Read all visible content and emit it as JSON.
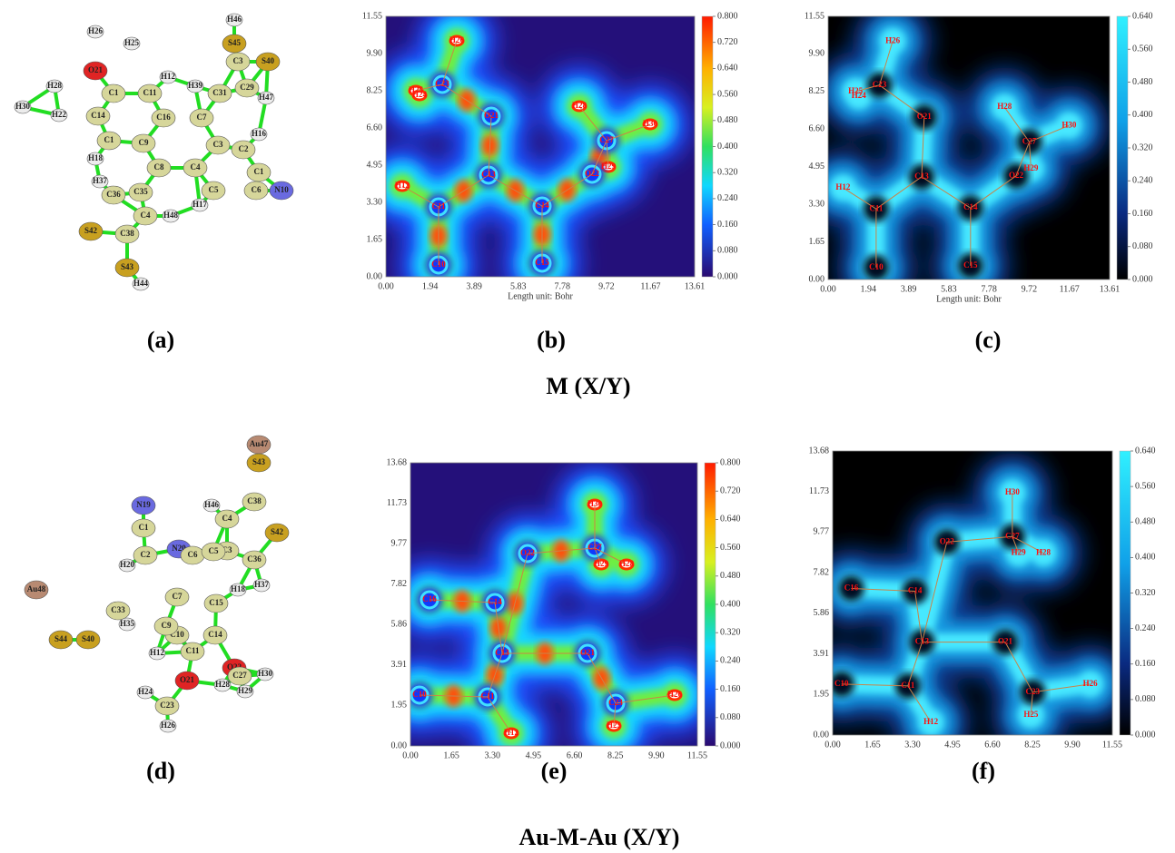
{
  "panels": {
    "a": {
      "caption": "(a)",
      "atoms": [
        "H26",
        "H25",
        "O21",
        "C1",
        "C11",
        "H12",
        "H28",
        "H30",
        "H22",
        "C14",
        "C16",
        "C7",
        "H46",
        "S45",
        "C3",
        "S40",
        "H39",
        "C31",
        "C29",
        "H47",
        "H16",
        "C2",
        "C1",
        "C6",
        "N10",
        "C9",
        "C1",
        "H18",
        "C8",
        "C4",
        "C3",
        "C5",
        "H17",
        "H37",
        "C36",
        "C35",
        "C4",
        "H48",
        "S42",
        "C38",
        "S43",
        "H44"
      ]
    },
    "b": {
      "caption": "(b)",
      "x_axis_label": "Length unit: Bohr",
      "x_ticks": [
        "0.00",
        "1.94",
        "3.89",
        "5.83",
        "7.78",
        "9.72",
        "11.67",
        "13.61"
      ],
      "y_ticks": [
        "0.00",
        "1.65",
        "3.30",
        "4.95",
        "6.60",
        "8.25",
        "9.90",
        "11.55"
      ],
      "colorbar_ticks": [
        "0.800",
        "0.720",
        "0.640",
        "0.560",
        "0.480",
        "0.400",
        "0.320",
        "0.240",
        "0.160",
        "0.080",
        "0.000"
      ],
      "atoms": [
        "H26",
        "C23",
        "H25",
        "H24",
        "O21",
        "H28",
        "H30",
        "C27",
        "H29",
        "O22",
        "C13",
        "H12",
        "C11",
        "C14",
        "C10",
        "C15"
      ]
    },
    "c": {
      "caption": "(c)",
      "x_axis_label": "Length unit: Bohr",
      "x_ticks": [
        "0.00",
        "1.94",
        "3.89",
        "5.83",
        "7.78",
        "9.72",
        "11.67",
        "13.61"
      ],
      "y_ticks": [
        "0.00",
        "1.65",
        "3.30",
        "4.95",
        "6.60",
        "8.25",
        "9.90",
        "11.55"
      ],
      "colorbar_ticks": [
        "0.640",
        "0.560",
        "0.480",
        "0.400",
        "0.320",
        "0.240",
        "0.160",
        "0.080",
        "0.000"
      ],
      "atoms": [
        "H26",
        "C23",
        "H25",
        "H24",
        "O21",
        "H28",
        "H30",
        "C27",
        "H29",
        "O22",
        "C13",
        "H12",
        "C11",
        "C14",
        "C10",
        "C15"
      ]
    },
    "d": {
      "caption": "(d)",
      "atoms": [
        "Au47",
        "S43",
        "C38",
        "S42",
        "C36",
        "H37",
        "C3",
        "H46",
        "C4",
        "N19",
        "C1",
        "C2",
        "H20",
        "N20",
        "C6",
        "C5",
        "H18",
        "C15",
        "C7",
        "C10",
        "C14",
        "O22",
        "C27",
        "H30",
        "H29",
        "H28",
        "C9",
        "H12",
        "C11",
        "O21",
        "H24",
        "C23",
        "H26",
        "C33",
        "H35",
        "S40",
        "S44",
        "Au48"
      ]
    },
    "e": {
      "caption": "(e)",
      "x_ticks": [
        "0.00",
        "1.65",
        "3.30",
        "4.95",
        "6.60",
        "8.25",
        "9.90",
        "11.55"
      ],
      "y_ticks": [
        "0.00",
        "1.95",
        "3.91",
        "5.86",
        "7.82",
        "9.77",
        "11.73",
        "13.68"
      ],
      "colorbar_ticks": [
        "0.800",
        "0.720",
        "0.640",
        "0.560",
        "0.480",
        "0.400",
        "0.320",
        "0.240",
        "0.160",
        "0.080",
        "0.000"
      ],
      "atoms": [
        "H30",
        "C27",
        "H29",
        "H28",
        "O22",
        "C16",
        "C14",
        "C13",
        "O21",
        "C10",
        "C11",
        "H12",
        "C23",
        "H25",
        "H26"
      ]
    },
    "f": {
      "caption": "(f)",
      "x_ticks": [
        "0.00",
        "1.65",
        "3.30",
        "4.95",
        "6.60",
        "8.25",
        "9.90",
        "11.55"
      ],
      "y_ticks": [
        "0.00",
        "1.95",
        "3.91",
        "5.86",
        "7.82",
        "9.77",
        "11.73",
        "13.68"
      ],
      "colorbar_ticks": [
        "0.640",
        "0.560",
        "0.480",
        "0.400",
        "0.320",
        "0.240",
        "0.160",
        "0.080",
        "0.000"
      ],
      "atoms": [
        "H30",
        "C27",
        "H29",
        "H28",
        "O22",
        "C16",
        "C14",
        "C13",
        "O21",
        "C10",
        "C11",
        "H12",
        "C23",
        "H25",
        "H26"
      ]
    }
  },
  "group_labels": [
    "M (X/Y)",
    "Au-M-Au (X/Y)"
  ]
}
